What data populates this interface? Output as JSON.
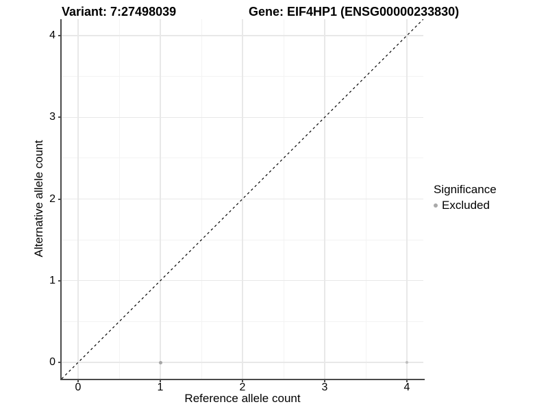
{
  "chart_data": {
    "type": "scatter",
    "titles": {
      "variant": "Variant: 7:27498039",
      "gene": "Gene: EIF4HP1 (ENSG00000233830)"
    },
    "xlabel": "Reference allele count",
    "ylabel": "Alternative allele count",
    "xlim": [
      -0.2,
      4.2
    ],
    "ylim": [
      -0.2,
      4.2
    ],
    "x_ticks": [
      0,
      1,
      2,
      3,
      4
    ],
    "y_ticks": [
      0,
      1,
      2,
      3,
      4
    ],
    "minor_x_ticks": [
      0.5,
      1.5,
      2.5,
      3.5
    ],
    "minor_y_ticks": [
      0.5,
      1.5,
      2.5,
      3.5
    ],
    "grid": "major and minor gridlines on white background",
    "legend_position": "right",
    "legend": {
      "title": "Significance",
      "items": [
        {
          "label": "Excluded",
          "color": "#a9a9a9"
        }
      ]
    },
    "series": [
      {
        "name": "Excluded",
        "color": "#a9a9a9",
        "points": [
          {
            "x": 1,
            "y": 0,
            "size": 2.5,
            "color": "#a6a6a6"
          },
          {
            "x": 4,
            "y": 0,
            "size": 2.0,
            "color": "#bebebe"
          }
        ]
      }
    ],
    "annotations": [
      {
        "type": "abline",
        "slope": 1,
        "intercept": 0,
        "style": "dashed",
        "color": "#000000"
      }
    ]
  },
  "colors": {
    "background": "#ffffff",
    "axis_line": "#4a4a4a",
    "major_grid": "#e8e8e8",
    "minor_grid": "#f3f3f3",
    "tick_text": "#000000"
  }
}
